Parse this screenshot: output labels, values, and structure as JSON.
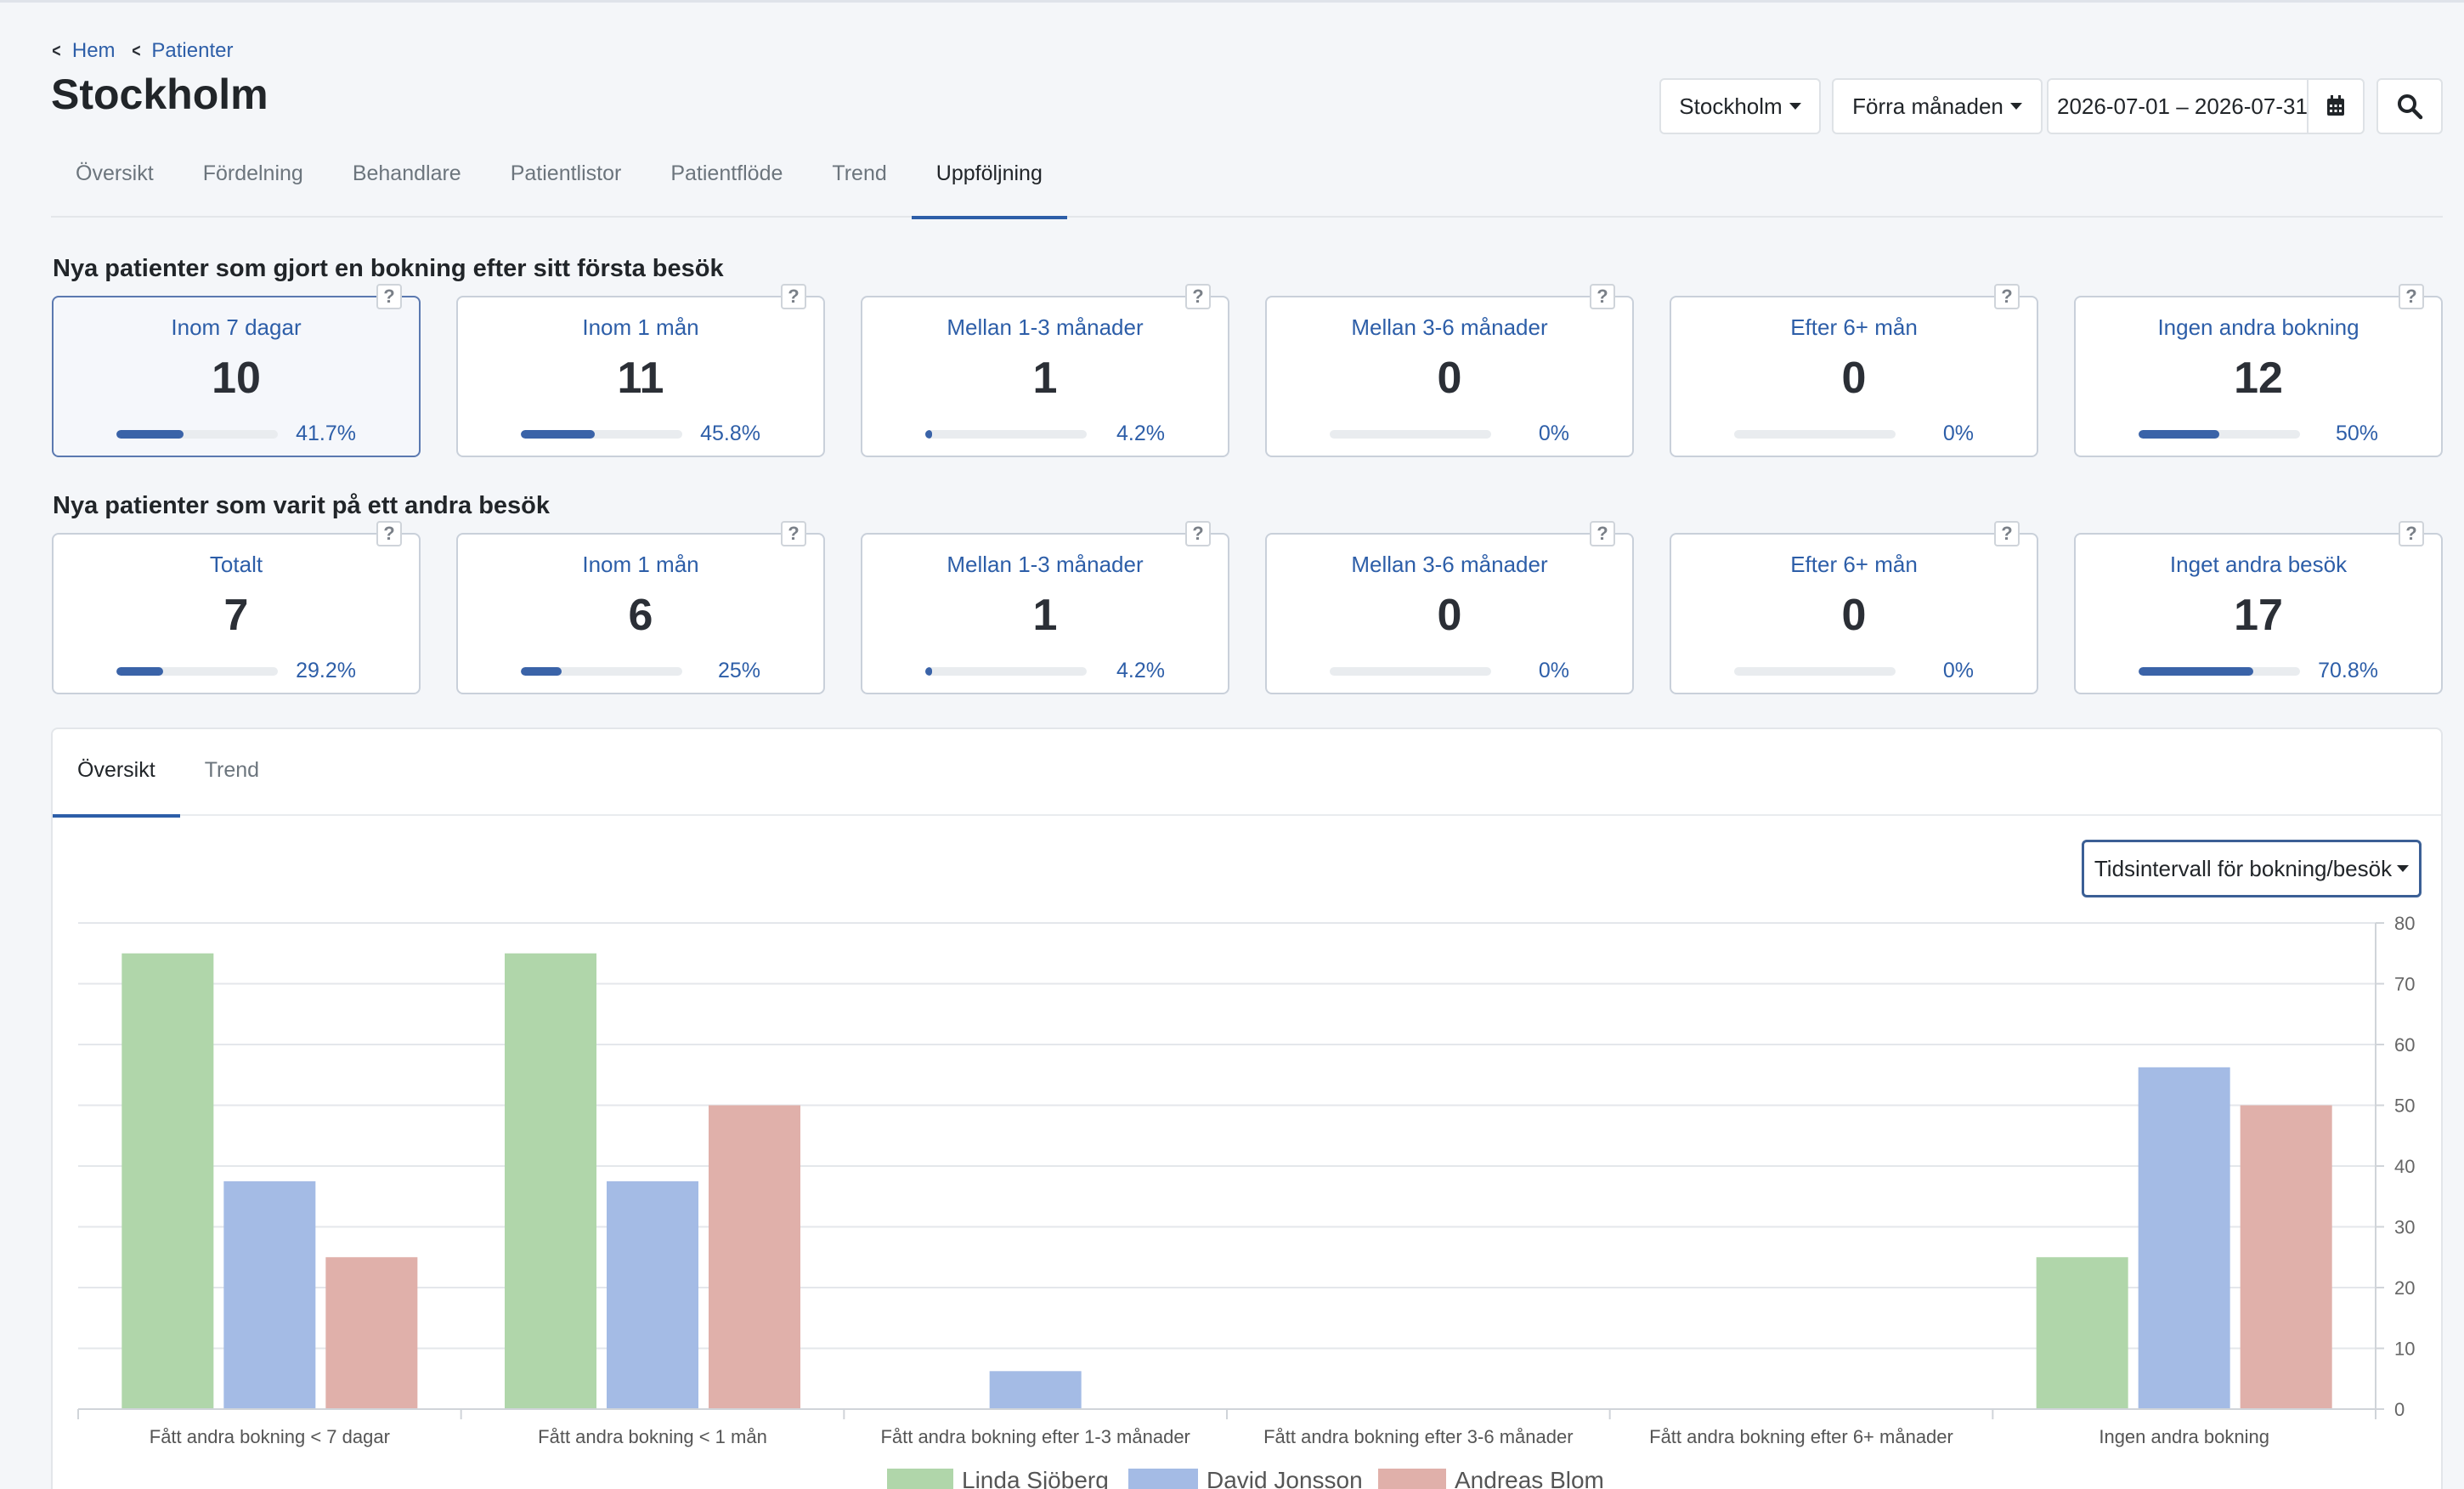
{
  "breadcrumb": {
    "home": "Hem",
    "patients": "Patienter"
  },
  "page_title": "Stockholm",
  "controls": {
    "region": "Stockholm",
    "period": "Förra månaden",
    "date_range": "2026-07-01 – 2026-07-31"
  },
  "tabs": [
    "Översikt",
    "Fördelning",
    "Behandlare",
    "Patientlistor",
    "Patientflöde",
    "Trend",
    "Uppföljning"
  ],
  "active_tab": "Uppföljning",
  "section1": {
    "title": "Nya patienter som gjort en bokning efter sitt första besök",
    "cards": [
      {
        "label": "Inom 7 dagar",
        "value": "10",
        "pct": "41.7%",
        "fraction": 0.417
      },
      {
        "label": "Inom 1 mån",
        "value": "11",
        "pct": "45.8%",
        "fraction": 0.458
      },
      {
        "label": "Mellan 1-3 månader",
        "value": "1",
        "pct": "4.2%",
        "fraction": 0.042
      },
      {
        "label": "Mellan 3-6 månader",
        "value": "0",
        "pct": "0%",
        "fraction": 0
      },
      {
        "label": "Efter 6+ mån",
        "value": "0",
        "pct": "0%",
        "fraction": 0
      },
      {
        "label": "Ingen andra bokning",
        "value": "12",
        "pct": "50%",
        "fraction": 0.5
      }
    ]
  },
  "section2": {
    "title": "Nya patienter som varit på ett andra besök",
    "cards": [
      {
        "label": "Totalt",
        "value": "7",
        "pct": "29.2%",
        "fraction": 0.292
      },
      {
        "label": "Inom 1 mån",
        "value": "6",
        "pct": "25%",
        "fraction": 0.25
      },
      {
        "label": "Mellan 1-3 månader",
        "value": "1",
        "pct": "4.2%",
        "fraction": 0.042
      },
      {
        "label": "Mellan 3-6 månader",
        "value": "0",
        "pct": "0%",
        "fraction": 0
      },
      {
        "label": "Efter 6+ mån",
        "value": "0",
        "pct": "0%",
        "fraction": 0
      },
      {
        "label": "Inget andra besök",
        "value": "17",
        "pct": "70.8%",
        "fraction": 0.708
      }
    ]
  },
  "help_symbol": "?",
  "panel": {
    "tabs": [
      "Översikt",
      "Trend"
    ],
    "interval_button": "Tidsintervall för bokning/besök"
  },
  "colors": {
    "accent": "#2d5ea8",
    "linda": "#b0d6aa",
    "david": "#a4bbe5",
    "andreas": "#e0b0aa"
  },
  "chart_data": {
    "type": "bar",
    "categories": [
      "Fått andra bokning < 7 dagar",
      "Fått andra bokning < 1 mån",
      "Fått andra bokning efter 1-3 månader",
      "Fått andra bokning efter 3-6 månader",
      "Fått andra bokning efter 6+  månader",
      "Ingen andra bokning"
    ],
    "series": [
      {
        "name": "Linda Sjöberg",
        "values": [
          75,
          75,
          0,
          0,
          0,
          25
        ]
      },
      {
        "name": "David Jonsson",
        "values": [
          37.5,
          37.5,
          6.25,
          0,
          0,
          56.25
        ]
      },
      {
        "name": "Andreas Blom",
        "values": [
          25,
          50,
          0,
          0,
          0,
          50
        ]
      }
    ],
    "ylim": [
      0,
      80
    ],
    "yticks": [
      0,
      10,
      20,
      30,
      40,
      50,
      60,
      70,
      80
    ],
    "y_axis_side": "right",
    "grid": true,
    "legend": "bottom",
    "title": "",
    "xlabel": "",
    "ylabel": ""
  }
}
